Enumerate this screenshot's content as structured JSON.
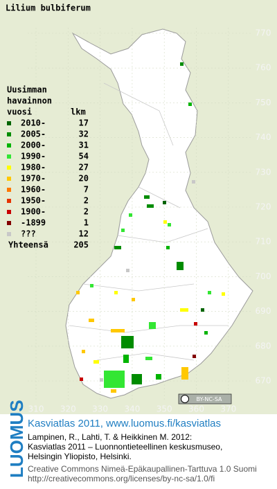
{
  "title": "Lilium bulbiferum",
  "legend": {
    "heading": [
      "Uusimman",
      "havainnon",
      "vuosi"
    ],
    "count_heading": "lkm",
    "entries": [
      {
        "label": "2010-",
        "count": 17,
        "color": "#006400"
      },
      {
        "label": "2005-",
        "count": 32,
        "color": "#008c00"
      },
      {
        "label": "2000-",
        "count": 31,
        "color": "#00b400"
      },
      {
        "label": "1990-",
        "count": 54,
        "color": "#33e633"
      },
      {
        "label": "1980-",
        "count": 27,
        "color": "#ffff00"
      },
      {
        "label": "1970-",
        "count": 20,
        "color": "#ffc800"
      },
      {
        "label": "1960-",
        "count": 7,
        "color": "#ff7800"
      },
      {
        "label": "1950-",
        "count": 2,
        "color": "#e63200"
      },
      {
        "label": "1900-",
        "count": 2,
        "color": "#c80000"
      },
      {
        "label": "-1899",
        "count": 1,
        "color": "#820000"
      },
      {
        "label": "???",
        "count": 12,
        "color": "#c8c8c8"
      }
    ],
    "total_label": "Yhteensä",
    "total": 205
  },
  "map": {
    "x_labels": [
      310,
      320,
      330,
      340,
      350,
      360,
      370
    ],
    "y_labels": [
      670,
      680,
      690,
      700,
      710,
      720,
      730,
      740,
      750,
      760,
      770
    ]
  },
  "license_badge": "BY-NC-SA",
  "footer": {
    "logo": "LUOMUS",
    "headline": "Kasviatlas 2011, www.luomus.fi/kasviatlas",
    "citation": [
      "Lampinen, R., Lahti, T. & Heikkinen M. 2012:",
      "Kasviatlas 2011 – Luonnontieteellinen keskusmuseo,",
      "Helsingin Yliopisto, Helsinki."
    ],
    "license": [
      "Creative Commons Nimeä-Epäkaupallinen-Tarttuva 1.0 Suomi",
      "http://creativecommons.org/licenses/by-nc-sa/1.0/fi"
    ]
  }
}
